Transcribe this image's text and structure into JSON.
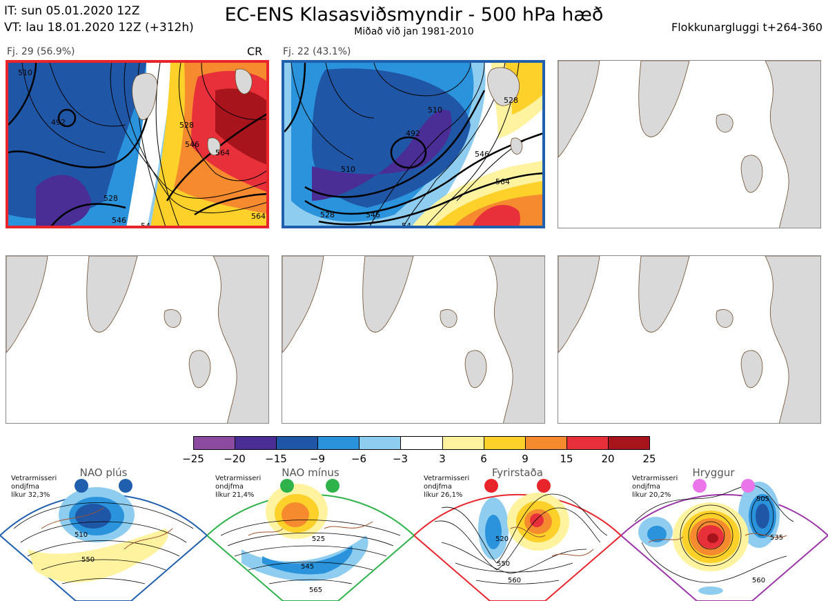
{
  "header": {
    "it_line": "IT: sun 05.01.2020 12Z",
    "vt_line": "VT: lau 18.01.2020 12Z  (+312h)",
    "title": "EC-ENS Klasasviðsmyndir - 500 hPa hæð",
    "subtitle": "Miðað við jan 1981-2010",
    "window": "Flokkunargluggi t+264-360"
  },
  "panels": [
    {
      "caption": "Fj. 29 (56.9%)",
      "tag": "CR",
      "frame_color": "#e8252b",
      "contour_labels": [
        "510",
        "492",
        "528",
        "546",
        "564",
        "528",
        "546",
        "564",
        "54"
      ]
    },
    {
      "caption": "Fj. 22 (43.1%)",
      "tag": "",
      "frame_color": "#1f5fae",
      "contour_labels": [
        "528",
        "492",
        "510",
        "546",
        "564",
        "510",
        "528",
        "546",
        "54"
      ]
    }
  ],
  "colorbar": {
    "colors": [
      "#8c4aa0",
      "#4a2e96",
      "#1f57a6",
      "#2a93dc",
      "#8ecdf0",
      "#ffffff",
      "#fff3a0",
      "#fdd12a",
      "#f58a2e",
      "#e8303a",
      "#a8141c"
    ],
    "ticks": [
      "−25",
      "−20",
      "−15",
      "−9",
      "−6",
      "−3",
      "3",
      "6",
      "9",
      "15",
      "20",
      "25"
    ]
  },
  "regimes": [
    {
      "name": "NAO plús",
      "note": [
        "Vetrarmisseri",
        "ondjfma",
        "líkur 32,3%"
      ],
      "color": "#1f5fae",
      "labels": [
        "510",
        "550"
      ]
    },
    {
      "name": "NAO mínus",
      "note": [
        "Vetrarmisseri",
        "ondjfma",
        "líkur 21,4%"
      ],
      "color": "#2eb24a",
      "labels": [
        "525",
        "545",
        "565"
      ]
    },
    {
      "name": "Fyrirstaða",
      "note": [
        "Vetrarmisseri",
        "ondjfma",
        "líkur 26,1%"
      ],
      "color": "#e8252b",
      "labels": [
        "520",
        "550",
        "560"
      ]
    },
    {
      "name": "Hryggur",
      "note": [
        "Vetrarmisseri",
        "ondjfma",
        "líkur 20,2%"
      ],
      "color": "#9b35a8",
      "labels": [
        "505",
        "535",
        "560"
      ]
    }
  ]
}
